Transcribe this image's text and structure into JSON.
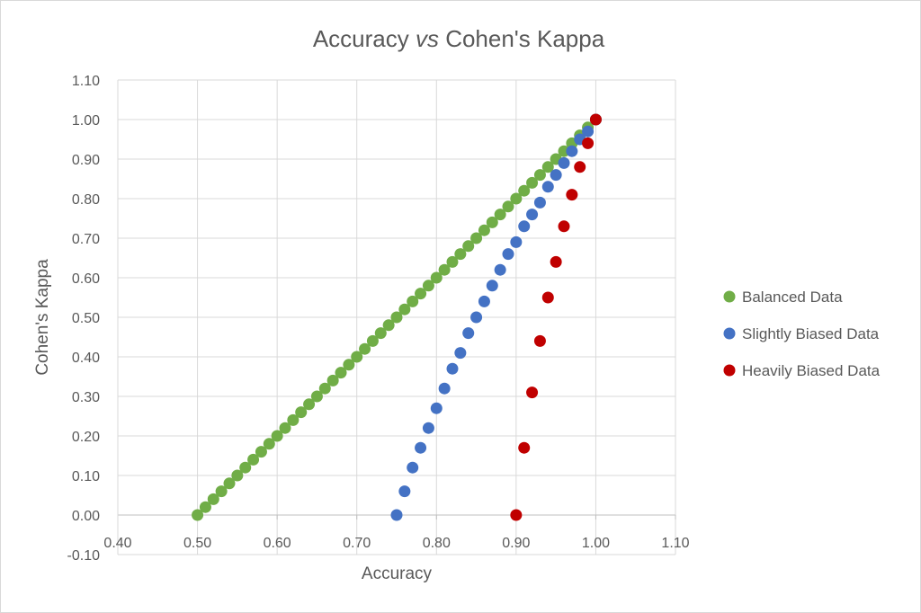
{
  "chart_data": {
    "type": "scatter",
    "title": "Accuracy vs Cohen's Kappa",
    "title_parts": [
      "Accuracy ",
      "vs",
      " Cohen's Kappa"
    ],
    "xlabel": "Accuracy",
    "ylabel": "Cohen's Kappa",
    "xlim": [
      0.4,
      1.1
    ],
    "ylim": [
      -0.1,
      1.1
    ],
    "x_ticks": [
      "0.40",
      "0.50",
      "0.60",
      "0.70",
      "0.80",
      "0.90",
      "1.00",
      "1.10"
    ],
    "y_ticks": [
      "1.10",
      "1.00",
      "0.90",
      "0.80",
      "0.70",
      "0.60",
      "0.50",
      "0.40",
      "0.30",
      "0.20",
      "0.10",
      "0.00",
      "-0.10"
    ],
    "grid": true,
    "legend_position": "right",
    "series": [
      {
        "name": "Balanced Data",
        "color": "#70ad47",
        "points": [
          [
            0.5,
            0.0
          ],
          [
            0.51,
            0.02
          ],
          [
            0.52,
            0.04
          ],
          [
            0.53,
            0.06
          ],
          [
            0.54,
            0.08
          ],
          [
            0.55,
            0.1
          ],
          [
            0.56,
            0.12
          ],
          [
            0.57,
            0.14
          ],
          [
            0.58,
            0.16
          ],
          [
            0.59,
            0.18
          ],
          [
            0.6,
            0.2
          ],
          [
            0.61,
            0.22
          ],
          [
            0.62,
            0.24
          ],
          [
            0.63,
            0.26
          ],
          [
            0.64,
            0.28
          ],
          [
            0.65,
            0.3
          ],
          [
            0.66,
            0.32
          ],
          [
            0.67,
            0.34
          ],
          [
            0.68,
            0.36
          ],
          [
            0.69,
            0.38
          ],
          [
            0.7,
            0.4
          ],
          [
            0.71,
            0.42
          ],
          [
            0.72,
            0.44
          ],
          [
            0.73,
            0.46
          ],
          [
            0.74,
            0.48
          ],
          [
            0.75,
            0.5
          ],
          [
            0.76,
            0.52
          ],
          [
            0.77,
            0.54
          ],
          [
            0.78,
            0.56
          ],
          [
            0.79,
            0.58
          ],
          [
            0.8,
            0.6
          ],
          [
            0.81,
            0.62
          ],
          [
            0.82,
            0.64
          ],
          [
            0.83,
            0.66
          ],
          [
            0.84,
            0.68
          ],
          [
            0.85,
            0.7
          ],
          [
            0.86,
            0.72
          ],
          [
            0.87,
            0.74
          ],
          [
            0.88,
            0.76
          ],
          [
            0.89,
            0.78
          ],
          [
            0.9,
            0.8
          ],
          [
            0.91,
            0.82
          ],
          [
            0.92,
            0.84
          ],
          [
            0.93,
            0.86
          ],
          [
            0.94,
            0.88
          ],
          [
            0.95,
            0.9
          ],
          [
            0.96,
            0.92
          ],
          [
            0.97,
            0.94
          ],
          [
            0.98,
            0.96
          ],
          [
            0.99,
            0.98
          ],
          [
            1.0,
            1.0
          ]
        ]
      },
      {
        "name": "Slightly Biased Data",
        "color": "#4472c4",
        "points": [
          [
            0.75,
            0.0
          ],
          [
            0.76,
            0.06
          ],
          [
            0.77,
            0.12
          ],
          [
            0.78,
            0.17
          ],
          [
            0.79,
            0.22
          ],
          [
            0.8,
            0.27
          ],
          [
            0.81,
            0.32
          ],
          [
            0.82,
            0.37
          ],
          [
            0.83,
            0.41
          ],
          [
            0.84,
            0.46
          ],
          [
            0.85,
            0.5
          ],
          [
            0.86,
            0.54
          ],
          [
            0.87,
            0.58
          ],
          [
            0.88,
            0.62
          ],
          [
            0.89,
            0.66
          ],
          [
            0.9,
            0.69
          ],
          [
            0.91,
            0.73
          ],
          [
            0.92,
            0.76
          ],
          [
            0.93,
            0.79
          ],
          [
            0.94,
            0.83
          ],
          [
            0.95,
            0.86
          ],
          [
            0.96,
            0.89
          ],
          [
            0.97,
            0.92
          ],
          [
            0.98,
            0.95
          ],
          [
            0.99,
            0.97
          ],
          [
            1.0,
            1.0
          ]
        ]
      },
      {
        "name": "Heavily Biased Data",
        "color": "#c00000",
        "points": [
          [
            0.9,
            0.0
          ],
          [
            0.91,
            0.17
          ],
          [
            0.92,
            0.31
          ],
          [
            0.93,
            0.44
          ],
          [
            0.94,
            0.55
          ],
          [
            0.95,
            0.64
          ],
          [
            0.96,
            0.73
          ],
          [
            0.97,
            0.81
          ],
          [
            0.98,
            0.88
          ],
          [
            0.99,
            0.94
          ],
          [
            1.0,
            1.0
          ]
        ]
      }
    ]
  }
}
